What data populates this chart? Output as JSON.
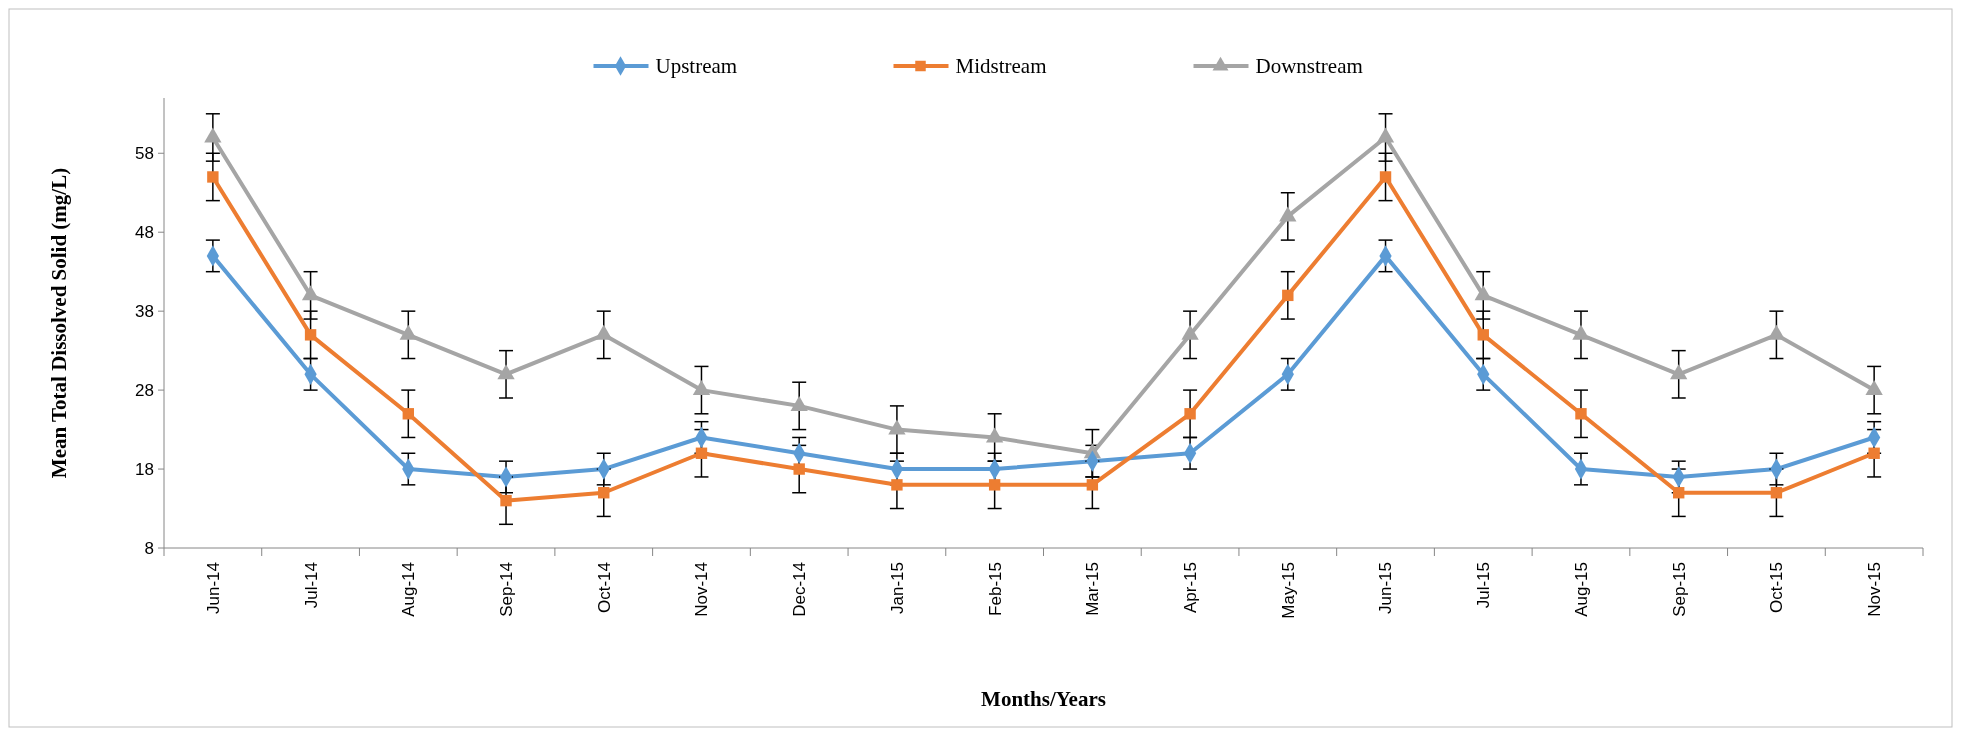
{
  "chart_data": {
    "type": "line",
    "xlabel": "Months/Years",
    "ylabel": "Mean Total Dissolved Solid (mg/L)",
    "categories": [
      "Jun-14",
      "Jul-14",
      "Aug-14",
      "Sep-14",
      "Oct-14",
      "Nov-14",
      "Dec-14",
      "Jan-15",
      "Feb-15",
      "Mar-15",
      "Apr-15",
      "May-15",
      "Jun-15",
      "Jul-15",
      "Aug-15",
      "Sep-15",
      "Oct-15",
      "Nov-15"
    ],
    "series": [
      {
        "name": "Upstream",
        "color": "#5b9bd5",
        "marker": "diamond",
        "values": [
          45,
          30,
          18,
          17,
          18,
          22,
          20,
          18,
          18,
          19,
          20,
          30,
          45,
          30,
          18,
          17,
          18,
          22
        ],
        "errors": [
          2,
          2,
          2,
          2,
          2,
          2,
          2,
          2,
          2,
          2,
          2,
          2,
          2,
          2,
          2,
          2,
          2,
          2
        ]
      },
      {
        "name": "Midstream",
        "color": "#ed7d31",
        "marker": "square",
        "values": [
          55,
          35,
          25,
          14,
          15,
          20,
          18,
          16,
          16,
          16,
          25,
          40,
          55,
          35,
          25,
          15,
          15,
          20
        ],
        "errors": [
          3,
          3,
          3,
          3,
          3,
          3,
          3,
          3,
          3,
          3,
          3,
          3,
          3,
          3,
          3,
          3,
          3,
          3
        ]
      },
      {
        "name": "Downstream",
        "color": "#a5a5a5",
        "marker": "triangle",
        "values": [
          60,
          40,
          35,
          30,
          35,
          28,
          26,
          23,
          22,
          20,
          35,
          50,
          60,
          40,
          35,
          30,
          35,
          28
        ],
        "errors": [
          3,
          3,
          3,
          3,
          3,
          3,
          3,
          3,
          3,
          3,
          3,
          3,
          3,
          3,
          3,
          3,
          3,
          3
        ]
      }
    ],
    "ylim": [
      8,
      65
    ],
    "yticks": [
      8,
      18,
      28,
      38,
      48,
      58
    ],
    "grid": false,
    "legend": "top",
    "line_style": "solid"
  }
}
